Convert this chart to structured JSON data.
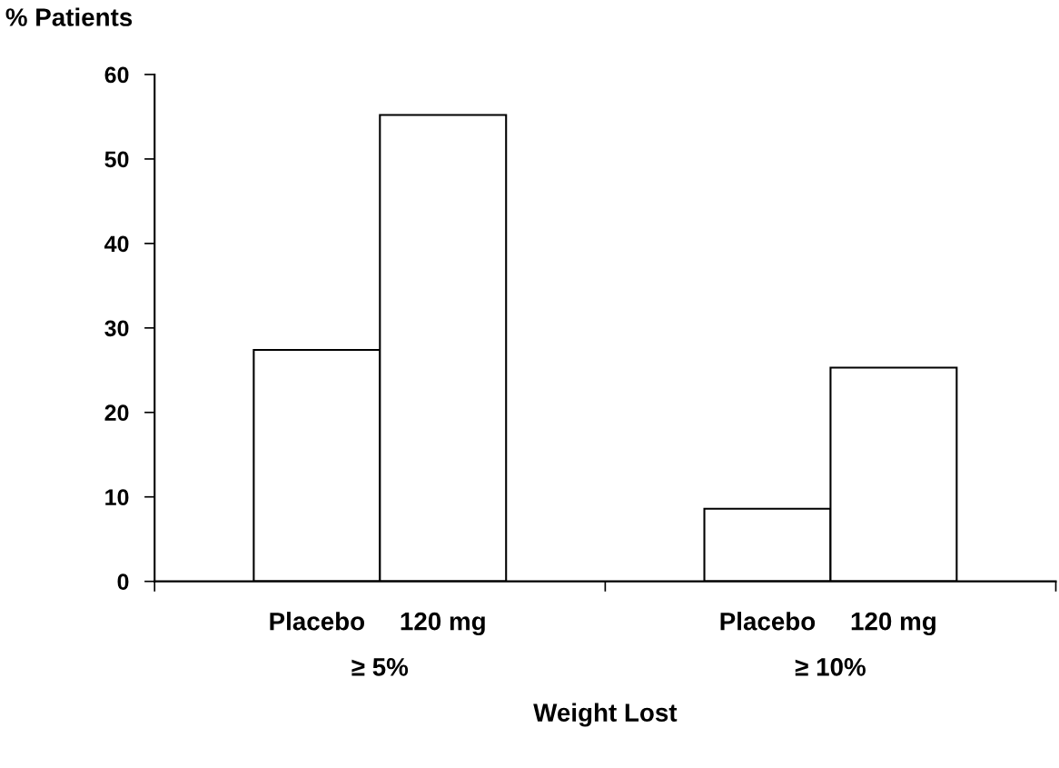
{
  "chart_data": {
    "type": "bar",
    "ylabel": "% Patients",
    "xlabel": "Weight Lost",
    "categories": [
      "≥ 5%",
      "≥ 10%"
    ],
    "series": [
      {
        "name": "Placebo",
        "color": "#ffffff",
        "values": [
          27.4,
          8.6
        ]
      },
      {
        "name": "120 mg",
        "color": "#ffffff",
        "values": [
          55.2,
          25.3
        ]
      }
    ],
    "ylim": [
      0,
      60
    ],
    "yticks": [
      0,
      10,
      20,
      30,
      40,
      50,
      60
    ],
    "grid": false,
    "legend": false
  }
}
